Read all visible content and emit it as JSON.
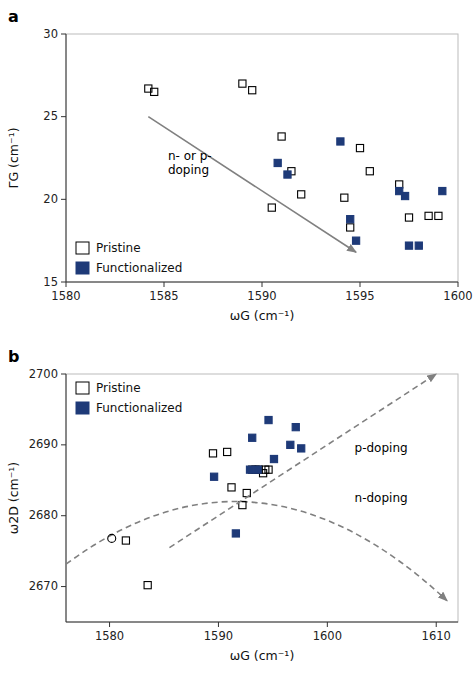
{
  "chart_data": [
    {
      "type": "scatter",
      "panel_label": "a",
      "x_label": "ωG (cm⁻¹)",
      "y_label": "ΓG (cm⁻¹)",
      "series": [
        {
          "name": "Pristine",
          "color": "#000000",
          "marker": "square-open",
          "x": [
            1584.2,
            1584.5,
            1589.0,
            1589.5,
            1590.5,
            1591.0,
            1591.5,
            1592.0,
            1594.2,
            1594.5,
            1595.0,
            1595.5,
            1597.0,
            1597.5,
            1598.5,
            1599.0
          ],
          "values": [
            26.7,
            26.5,
            27.0,
            26.6,
            19.5,
            23.8,
            21.7,
            20.3,
            20.1,
            18.3,
            23.1,
            21.7,
            20.9,
            18.9,
            19.0,
            19.0
          ]
        },
        {
          "name": "Functionalized",
          "color": "#1e3a78",
          "marker": "square",
          "x": [
            1590.8,
            1591.3,
            1594.0,
            1594.5,
            1594.8,
            1597.0,
            1597.3,
            1597.5,
            1598.0,
            1599.2
          ],
          "values": [
            22.2,
            21.5,
            23.5,
            18.8,
            17.5,
            20.5,
            20.2,
            17.2,
            17.2,
            20.5
          ]
        }
      ],
      "arrows": [
        {
          "x1": 1584.2,
          "y1": 25.0,
          "x2": 1594.8,
          "y2": 16.8,
          "color": "#808080"
        }
      ],
      "annotations": [
        {
          "text": "n- or p-\ndoping",
          "x": 1585.2,
          "y": 22.2
        }
      ],
      "legend": "lower left",
      "xlim": [
        1580,
        1600
      ],
      "ylim": [
        15,
        30
      ],
      "xticks": [
        1580,
        1585,
        1590,
        1595,
        1600
      ],
      "yticks": [
        15,
        20,
        25,
        30
      ]
    },
    {
      "type": "scatter",
      "panel_label": "b",
      "x_label": "ωG (cm⁻¹)",
      "y_label": "ω2D (cm⁻¹)",
      "series": [
        {
          "name": "Pristine",
          "color": "#000000",
          "marker": "square-open",
          "x": [
            1581.5,
            1583.5,
            1589.5,
            1590.8,
            1591.2,
            1592.2,
            1592.6,
            1593.1,
            1593.4,
            1593.7,
            1594.1,
            1594.3,
            1594.6
          ],
          "values": [
            2676.5,
            2670.2,
            2688.8,
            2689.0,
            2684.0,
            2681.5,
            2683.2,
            2686.5,
            2686.5,
            2686.5,
            2686.0,
            2686.5,
            2686.5
          ]
        },
        {
          "name": "Functionalized",
          "color": "#1e3a78",
          "marker": "square",
          "x": [
            1589.6,
            1591.6,
            1592.9,
            1593.1,
            1593.6,
            1594.6,
            1595.1,
            1596.6,
            1597.1,
            1597.6
          ],
          "values": [
            2685.5,
            2677.5,
            2686.5,
            2691.0,
            2686.5,
            2693.5,
            2688.0,
            2690.0,
            2692.5,
            2689.5
          ]
        },
        {
          "color": "#000000",
          "marker": "circle-open",
          "x": [
            1580.2
          ],
          "values": [
            2676.8
          ]
        }
      ],
      "lines": [
        {
          "color": "#808080",
          "line_style": "dashed",
          "x": [
            1585.5,
            1610.5
          ],
          "values": [
            2675.5,
            2700.5
          ]
        },
        {
          "color": "#808080",
          "line_style": "dashed",
          "x": [
            1576.0,
            1593.5,
            1611.0
          ],
          "values": [
            2673.1545,
            2681.8527,
            2668.0
          ]
        }
      ],
      "annotations": [
        {
          "text": "p-doping",
          "x": 1602.5,
          "y": 2689.5
        },
        {
          "text": "n-doping",
          "x": 1602.5,
          "y": 2682.5
        }
      ],
      "legend": "upper left",
      "xlim": [
        1576,
        1612
      ],
      "ylim": [
        2665,
        2700
      ],
      "xticks": [
        1580,
        1590,
        1600,
        1610
      ],
      "yticks": [
        2670,
        2680,
        2690,
        2700
      ]
    }
  ]
}
